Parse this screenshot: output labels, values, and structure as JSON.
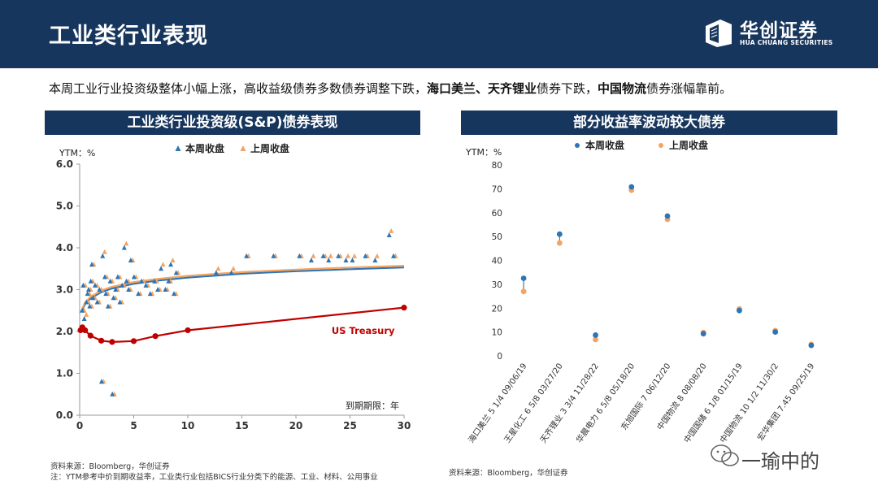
{
  "header": {
    "title": "工业类行业表现",
    "logo_cn": "华创证券",
    "logo_en": "HUA CHUANG SECURITIES"
  },
  "summary": {
    "part1": "本周工业行业投资级整体小幅上涨，高收益级债券多数债券调整下跌，",
    "bold1": "海口美兰、天齐锂业",
    "part2": "债券下跌，",
    "bold2": "中国物流",
    "part3": "债券涨幅靠前。"
  },
  "colors": {
    "navy": "#17365d",
    "this_week": "#2e75b6",
    "last_week": "#f4a460",
    "treasury": "#c00000"
  },
  "chart_data": [
    {
      "type": "scatter",
      "title": "工业类行业投资级(S&P)债券表现",
      "ylabel": "YTM：%",
      "xlabel": "到期期限：年",
      "xlim": [
        0,
        30
      ],
      "ylim": [
        0,
        6
      ],
      "xticks": [
        "0",
        "5",
        "10",
        "15",
        "20",
        "25",
        "30"
      ],
      "yticks": [
        "0.0",
        "1.0",
        "2.0",
        "3.0",
        "4.0",
        "5.0",
        "6.0"
      ],
      "legend": "top",
      "series": [
        {
          "name": "本周收盘",
          "marker": "triangle",
          "points": [
            [
              0.3,
              2.5
            ],
            [
              0.4,
              3.1
            ],
            [
              0.5,
              2.3
            ],
            [
              0.7,
              2.7
            ],
            [
              0.8,
              2.9
            ],
            [
              0.9,
              3.0
            ],
            [
              1.0,
              2.6
            ],
            [
              1.1,
              3.2
            ],
            [
              1.2,
              3.6
            ],
            [
              1.3,
              2.8
            ],
            [
              1.5,
              3.1
            ],
            [
              1.7,
              2.7
            ],
            [
              1.9,
              3.0
            ],
            [
              2.1,
              0.8
            ],
            [
              2.2,
              3.8
            ],
            [
              2.4,
              3.3
            ],
            [
              2.5,
              2.9
            ],
            [
              2.7,
              2.6
            ],
            [
              2.9,
              3.2
            ],
            [
              3.1,
              0.5
            ],
            [
              3.2,
              2.8
            ],
            [
              3.4,
              3.0
            ],
            [
              3.6,
              3.3
            ],
            [
              3.8,
              2.7
            ],
            [
              4.0,
              3.1
            ],
            [
              4.2,
              4.0
            ],
            [
              4.4,
              3.2
            ],
            [
              4.6,
              3.0
            ],
            [
              4.8,
              3.7
            ],
            [
              5.1,
              3.3
            ],
            [
              5.5,
              2.9
            ],
            [
              5.8,
              3.2
            ],
            [
              6.2,
              3.1
            ],
            [
              6.6,
              2.9
            ],
            [
              7.0,
              3.2
            ],
            [
              7.3,
              3.0
            ],
            [
              7.6,
              3.5
            ],
            [
              8.0,
              3.0
            ],
            [
              8.3,
              3.2
            ],
            [
              8.5,
              3.6
            ],
            [
              8.8,
              2.9
            ],
            [
              9.0,
              3.4
            ],
            [
              12.7,
              3.4
            ],
            [
              14.1,
              3.4
            ],
            [
              15.5,
              3.8
            ],
            [
              18.0,
              3.8
            ],
            [
              20.4,
              3.8
            ],
            [
              21.5,
              3.7
            ],
            [
              22.6,
              3.8
            ],
            [
              23.1,
              3.7
            ],
            [
              24.0,
              3.8
            ],
            [
              24.7,
              3.7
            ],
            [
              25.3,
              3.7
            ],
            [
              26.5,
              3.8
            ],
            [
              27.4,
              3.7
            ],
            [
              28.7,
              4.3
            ],
            [
              29.1,
              3.8
            ]
          ]
        },
        {
          "name": "上周收盘",
          "marker": "triangle",
          "points": [
            [
              0.3,
              2.5
            ],
            [
              0.4,
              3.1
            ],
            [
              0.5,
              2.4
            ],
            [
              0.7,
              2.7
            ],
            [
              0.8,
              2.9
            ],
            [
              0.9,
              3.0
            ],
            [
              1.0,
              2.6
            ],
            [
              1.1,
              3.2
            ],
            [
              1.2,
              3.6
            ],
            [
              1.3,
              2.8
            ],
            [
              1.5,
              3.1
            ],
            [
              1.7,
              2.7
            ],
            [
              1.9,
              3.0
            ],
            [
              2.1,
              0.8
            ],
            [
              2.2,
              3.9
            ],
            [
              2.4,
              3.3
            ],
            [
              2.5,
              2.9
            ],
            [
              2.7,
              2.6
            ],
            [
              2.9,
              3.2
            ],
            [
              3.1,
              0.5
            ],
            [
              3.2,
              2.8
            ],
            [
              3.4,
              3.0
            ],
            [
              3.6,
              3.3
            ],
            [
              3.8,
              2.7
            ],
            [
              4.0,
              3.1
            ],
            [
              4.2,
              4.1
            ],
            [
              4.4,
              3.2
            ],
            [
              4.6,
              3.0
            ],
            [
              4.8,
              3.7
            ],
            [
              5.1,
              3.3
            ],
            [
              5.5,
              2.9
            ],
            [
              5.8,
              3.2
            ],
            [
              6.2,
              3.1
            ],
            [
              6.6,
              2.9
            ],
            [
              7.0,
              3.2
            ],
            [
              7.3,
              3.0
            ],
            [
              7.6,
              3.6
            ],
            [
              8.0,
              3.0
            ],
            [
              8.3,
              3.2
            ],
            [
              8.5,
              3.7
            ],
            [
              8.8,
              2.9
            ],
            [
              9.0,
              3.4
            ],
            [
              12.7,
              3.5
            ],
            [
              14.1,
              3.5
            ],
            [
              15.5,
              3.8
            ],
            [
              18.0,
              3.8
            ],
            [
              20.4,
              3.8
            ],
            [
              21.5,
              3.8
            ],
            [
              22.6,
              3.8
            ],
            [
              23.1,
              3.8
            ],
            [
              24.0,
              3.8
            ],
            [
              24.7,
              3.8
            ],
            [
              25.3,
              3.8
            ],
            [
              26.5,
              3.8
            ],
            [
              27.4,
              3.8
            ],
            [
              28.7,
              4.4
            ],
            [
              29.1,
              3.8
            ]
          ]
        }
      ],
      "trendlines": [
        {
          "series": "本周收盘",
          "x": [
            0.25,
            0.5,
            1,
            2,
            3,
            5,
            7,
            10,
            15,
            20,
            25,
            30
          ],
          "y": [
            2.52,
            2.65,
            2.79,
            2.94,
            3.03,
            3.14,
            3.21,
            3.29,
            3.38,
            3.44,
            3.49,
            3.53
          ]
        },
        {
          "series": "上周收盘",
          "x": [
            0.25,
            0.5,
            1,
            2,
            3,
            5,
            7,
            10,
            15,
            20,
            25,
            30
          ],
          "y": [
            2.56,
            2.69,
            2.83,
            2.98,
            3.07,
            3.18,
            3.25,
            3.33,
            3.42,
            3.48,
            3.53,
            3.57
          ]
        }
      ],
      "treasury": {
        "label": "US Treasury",
        "x": [
          0.08,
          0.25,
          0.5,
          1,
          2,
          3,
          5,
          7,
          10,
          30
        ],
        "y": [
          2.03,
          2.1,
          2.03,
          1.9,
          1.78,
          1.75,
          1.77,
          1.89,
          2.03,
          2.57
        ]
      },
      "source": "资料来源：Bloomberg，华创证券",
      "note": "注：YTM参考中价到期收益率，工业类行业包括BICS行业分类下的能源、工业、材料、公用事业"
    },
    {
      "type": "scatter",
      "title": "部分收益率波动较大债券",
      "ylabel": "YTM：%",
      "ylim": [
        0,
        80
      ],
      "yticks": [
        "0",
        "10",
        "20",
        "30",
        "40",
        "50",
        "60",
        "70",
        "80"
      ],
      "legend": "top",
      "categories": [
        "海口美兰 5 1/4 09/06/19",
        "王星化工 6 5/8 03/27/20",
        "天齐锂业 3 3/4 11/28/22",
        "华晨电力 6 5/8 05/18/20",
        "东旭国际 7 06/12/20",
        "中国物流 8 08/08/20",
        "中国国储 6 1/8 01/15/19",
        "中国物流 10 1/2 11/30/2",
        "宏华集团 7.45 09/25/19"
      ],
      "series": [
        {
          "name": "本周收盘",
          "values": [
            32.5,
            51.0,
            8.7,
            70.8,
            58.6,
            9.3,
            19.0,
            10.0,
            4.4
          ]
        },
        {
          "name": "上周收盘",
          "values": [
            27.0,
            47.3,
            6.8,
            69.4,
            57.2,
            9.8,
            19.7,
            10.6,
            4.8
          ]
        }
      ],
      "source": "资料来源：Bloomberg，华创证券"
    }
  ],
  "watermark": "一瑜中的"
}
